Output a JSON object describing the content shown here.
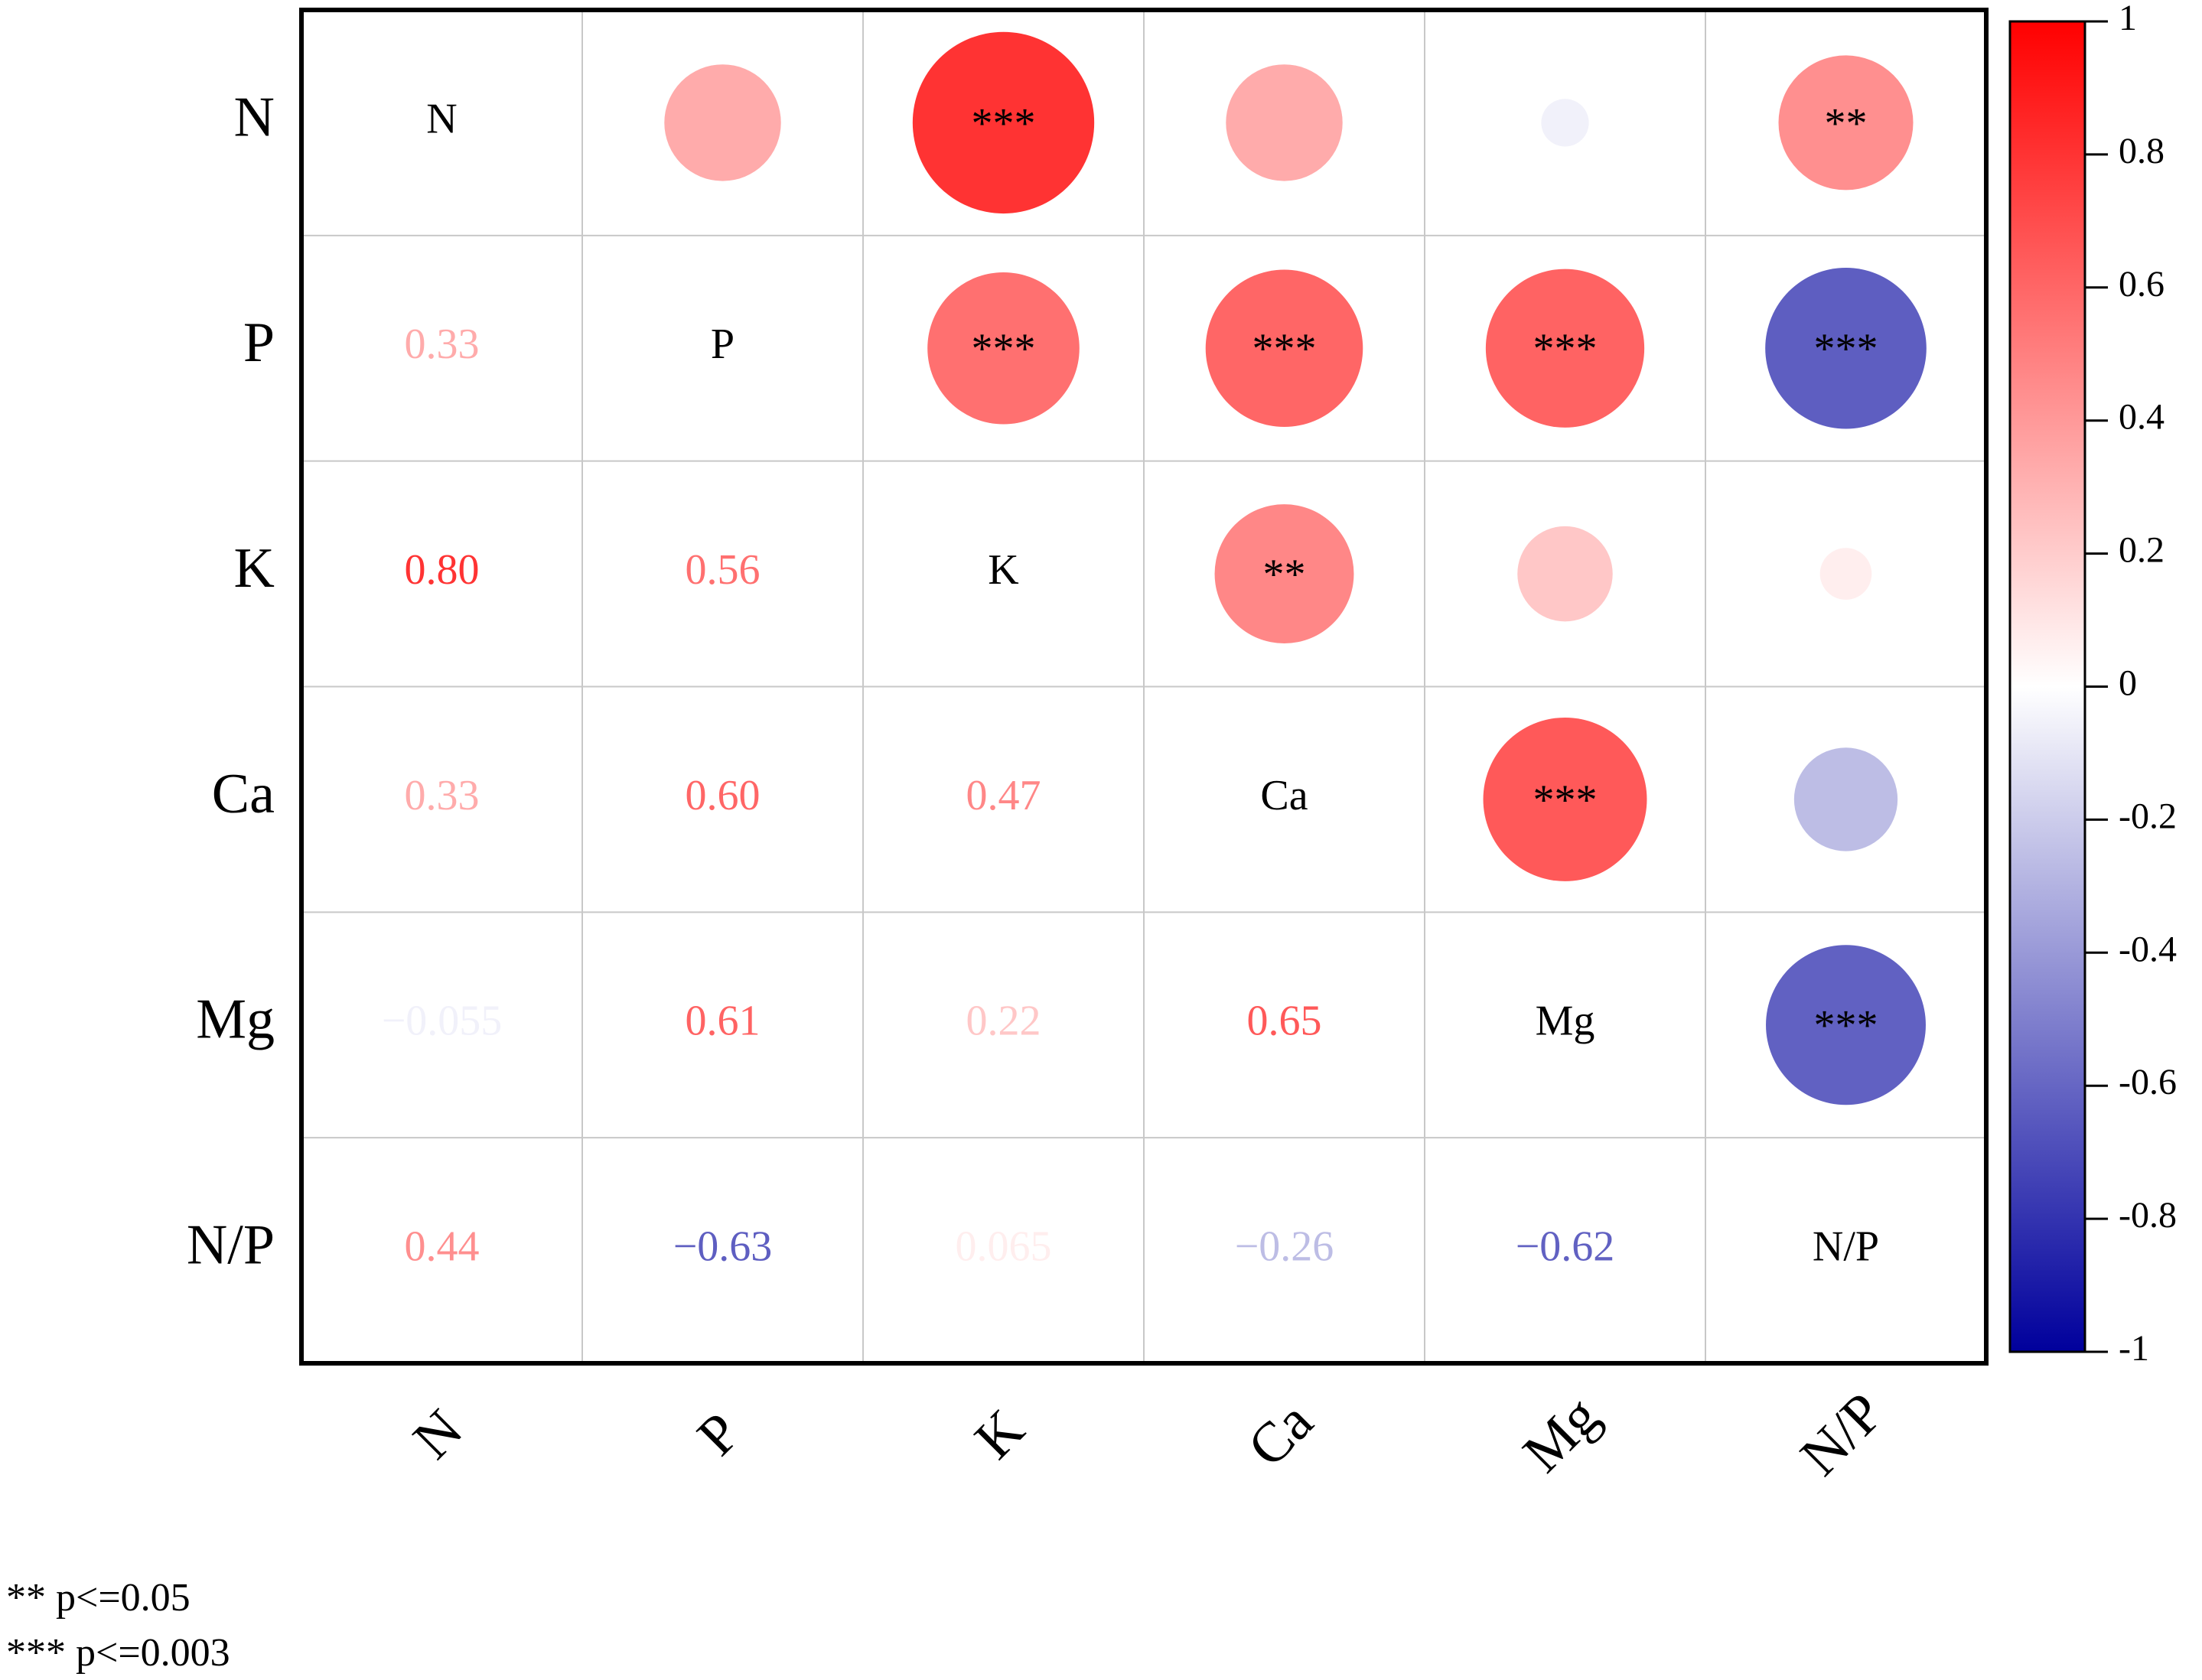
{
  "chart_data": {
    "type": "correlation",
    "variables": [
      "N",
      "P",
      "K",
      "Ca",
      "Mg",
      "N/P"
    ],
    "values": [
      [],
      [
        0.33
      ],
      [
        0.8,
        0.56
      ],
      [
        0.33,
        0.6,
        0.47
      ],
      [
        -0.055,
        0.61,
        0.22,
        0.65
      ],
      [
        0.44,
        -0.63,
        0.065,
        -0.26,
        -0.62
      ]
    ],
    "value_labels": [
      [],
      [
        "0.33"
      ],
      [
        "0.80",
        "0.56"
      ],
      [
        "0.33",
        "0.60",
        "0.47"
      ],
      [
        "−0.055",
        "0.61",
        "0.22",
        "0.65"
      ],
      [
        "0.44",
        "−0.63",
        "0.065",
        "−0.26",
        "−0.62"
      ]
    ],
    "significance": [
      [],
      [
        null
      ],
      [
        "***",
        "***"
      ],
      [
        null,
        "***",
        "**"
      ],
      [
        null,
        "***",
        null,
        "***"
      ],
      [
        "**",
        "***",
        null,
        null,
        "***"
      ]
    ],
    "significance_legend": [
      "** p<=0.05",
      "*** p<=0.003"
    ],
    "clim": [
      -1,
      1
    ],
    "cticks": [
      -1,
      -0.8,
      -0.6,
      -0.4,
      -0.2,
      0,
      0.2,
      0.4,
      0.6,
      0.8,
      1
    ],
    "colormap": [
      "#00009c",
      "#ffffff",
      "#ff0000"
    ]
  }
}
